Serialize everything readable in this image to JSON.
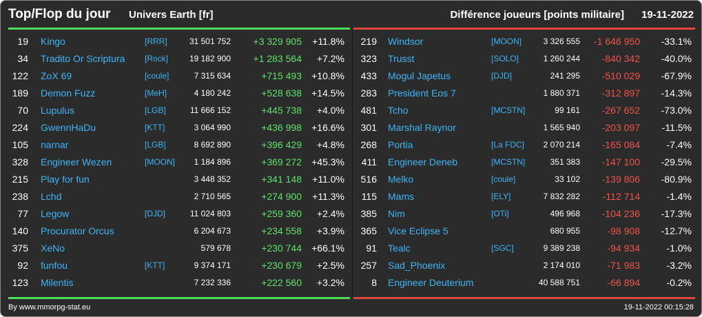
{
  "header": {
    "title": "Top/Flop du jour",
    "server": "Univers Earth [fr]",
    "metric": "Différence joueurs [points militaire]",
    "date": "19-11-2022"
  },
  "colors": {
    "top_accent": "#4cdf57",
    "flop_accent": "#e0453b",
    "name": "#3db5f7",
    "positive": "#5fe26a",
    "negative": "#f0534a",
    "background": "#2b2b2b"
  },
  "top": [
    {
      "rank": "19",
      "name": "Kingo",
      "ally": "[RRR]",
      "points": "31 501 752",
      "diff": "+3 329 905",
      "pct": "+11.8%"
    },
    {
      "rank": "34",
      "name": "Tradito Or Scriptura",
      "ally": "[Rock]",
      "points": "19 182 900",
      "diff": "+1 283 564",
      "pct": "+7.2%"
    },
    {
      "rank": "122",
      "name": "ZoX 69",
      "ally": "[coule]",
      "points": "7 315 634",
      "diff": "+715 493",
      "pct": "+10.8%"
    },
    {
      "rank": "189",
      "name": "Demon Fuzz",
      "ally": "[MeH]",
      "points": "4 180 242",
      "diff": "+528 638",
      "pct": "+14.5%"
    },
    {
      "rank": "70",
      "name": "Lupulus",
      "ally": "[LGB]",
      "points": "11 666 152",
      "diff": "+445 738",
      "pct": "+4.0%"
    },
    {
      "rank": "224",
      "name": "GwennHaDu",
      "ally": "[KTT]",
      "points": "3 064 990",
      "diff": "+436 998",
      "pct": "+16.6%"
    },
    {
      "rank": "105",
      "name": "narnar",
      "ally": "[LGB]",
      "points": "8 692 890",
      "diff": "+396 429",
      "pct": "+4.8%"
    },
    {
      "rank": "328",
      "name": "Engineer Wezen",
      "ally": "[MOON]",
      "points": "1 184 896",
      "diff": "+369 272",
      "pct": "+45.3%"
    },
    {
      "rank": "215",
      "name": "Play for fun",
      "ally": "",
      "points": "3 448 352",
      "diff": "+341 148",
      "pct": "+11.0%"
    },
    {
      "rank": "238",
      "name": "Lchd",
      "ally": "",
      "points": "2 710 565",
      "diff": "+274 900",
      "pct": "+11.3%"
    },
    {
      "rank": "77",
      "name": "Legow",
      "ally": "[DJD]",
      "points": "11 024 803",
      "diff": "+259 360",
      "pct": "+2.4%"
    },
    {
      "rank": "140",
      "name": "Procurator Orcus",
      "ally": "",
      "points": "6 204 673",
      "diff": "+234 558",
      "pct": "+3.9%"
    },
    {
      "rank": "375",
      "name": "XeNo",
      "ally": "",
      "points": "579 678",
      "diff": "+230 744",
      "pct": "+66.1%"
    },
    {
      "rank": "92",
      "name": "funfou",
      "ally": "[KTT]",
      "points": "9 374 171",
      "diff": "+230 679",
      "pct": "+2.5%"
    },
    {
      "rank": "123",
      "name": "Milentis",
      "ally": "",
      "points": "7 232 336",
      "diff": "+222 560",
      "pct": "+3.2%"
    }
  ],
  "flop": [
    {
      "rank": "219",
      "name": "Windsor",
      "ally": "[MOON]",
      "points": "3 326 555",
      "diff": "-1 646 950",
      "pct": "-33.1%"
    },
    {
      "rank": "323",
      "name": "Trusst",
      "ally": "[SOLO]",
      "points": "1 260 244",
      "diff": "-840 342",
      "pct": "-40.0%"
    },
    {
      "rank": "433",
      "name": "Mogul Japetus",
      "ally": "[DJD]",
      "points": "241 295",
      "diff": "-510 029",
      "pct": "-67.9%"
    },
    {
      "rank": "283",
      "name": "President Eos 7",
      "ally": "",
      "points": "1 880 371",
      "diff": "-312 897",
      "pct": "-14.3%"
    },
    {
      "rank": "481",
      "name": "Tcho",
      "ally": "[MCSTN]",
      "points": "99 161",
      "diff": "-267 652",
      "pct": "-73.0%"
    },
    {
      "rank": "301",
      "name": "Marshal Raynor",
      "ally": "",
      "points": "1 565 940",
      "diff": "-203 097",
      "pct": "-11.5%"
    },
    {
      "rank": "268",
      "name": "Portia",
      "ally": "[La FDC]",
      "points": "2 070 214",
      "diff": "-165 084",
      "pct": "-7.4%"
    },
    {
      "rank": "411",
      "name": "Engineer Deneb",
      "ally": "[MCSTN]",
      "points": "351 383",
      "diff": "-147 100",
      "pct": "-29.5%"
    },
    {
      "rank": "516",
      "name": "Melko",
      "ally": "[coule]",
      "points": "33 102",
      "diff": "-139 806",
      "pct": "-80.9%"
    },
    {
      "rank": "115",
      "name": "Mams",
      "ally": "[ELY]",
      "points": "7 832 282",
      "diff": "-112 714",
      "pct": "-1.4%"
    },
    {
      "rank": "385",
      "name": "Nim",
      "ally": "[OTi]",
      "points": "496 968",
      "diff": "-104 236",
      "pct": "-17.3%"
    },
    {
      "rank": "365",
      "name": "Vice Eclipse 5",
      "ally": "",
      "points": "680 955",
      "diff": "-98 908",
      "pct": "-12.7%"
    },
    {
      "rank": "91",
      "name": "Tealc",
      "ally": "[SGC]",
      "points": "9 389 238",
      "diff": "-94 934",
      "pct": "-1.0%"
    },
    {
      "rank": "257",
      "name": "Sad_Phoenix",
      "ally": "",
      "points": "2 174 010",
      "diff": "-71 983",
      "pct": "-3.2%"
    },
    {
      "rank": "8",
      "name": "Engineer Deuterium",
      "ally": "",
      "points": "40 588 751",
      "diff": "-66 894",
      "pct": "-0.2%"
    }
  ],
  "footer": {
    "credit": "By www.mmorpg-stat.eu",
    "timestamp": "19-11-2022 00:15:28"
  }
}
